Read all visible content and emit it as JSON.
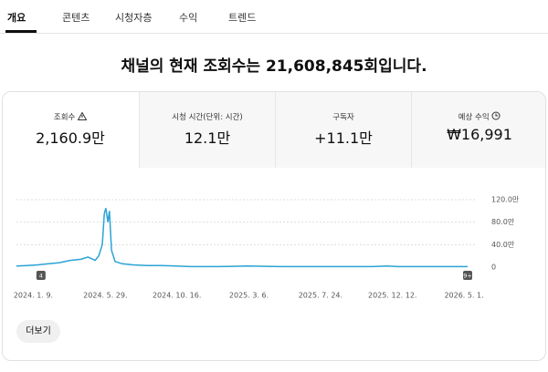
{
  "tabs": [
    "개요",
    "콘텐츠",
    "시청자층",
    "수익",
    "트렌드"
  ],
  "headline": "채널의 현재 조회수는 21,608,845회입니다.",
  "stats": [
    {
      "label": "조회수",
      "value": "2,160.9만"
    },
    {
      "label": "시청 시간(단위: 시간)",
      "value": "12.1만"
    },
    {
      "label": "구독자",
      "value": "+11.1만"
    },
    {
      "label": "예상 수익",
      "value": "₩16,991"
    }
  ],
  "chart_data": {
    "type": "line",
    "x": [
      "2023-12-07",
      "2023-12-28",
      "2024-01-18",
      "2024-02-08",
      "2024-02-29",
      "2024-03-21",
      "2024-04-11",
      "2024-04-25",
      "2024-05-09",
      "2024-05-16",
      "2024-05-23",
      "2024-05-27",
      "2024-05-30",
      "2024-06-03",
      "2024-06-06",
      "2024-06-10",
      "2024-06-17",
      "2024-07-01",
      "2024-07-22",
      "2024-08-19",
      "2024-09-16",
      "2024-10-14",
      "2024-11-11",
      "2025-01-06",
      "2025-03-03",
      "2025-05-05",
      "2025-07-07",
      "2025-09-01",
      "2025-11-03",
      "2025-12-01",
      "2025-12-22",
      "2026-02-02",
      "2026-03-16",
      "2026-05-08"
    ],
    "series": [
      {
        "color": "#2aa3d6",
        "values": [
          2,
          3,
          4,
          6,
          8,
          12,
          14,
          18,
          12,
          20,
          40,
          95,
          105,
          80,
          100,
          30,
          10,
          6,
          4,
          3,
          3,
          2,
          1,
          1,
          2,
          1,
          1,
          1,
          1,
          2,
          1,
          1,
          1,
          1
        ]
      }
    ],
    "xlim": [
      "2023-12-07",
      "2026-05-08"
    ],
    "xticks": [
      {
        "value": "2024-01-09",
        "label": "2024. 1. 9."
      },
      {
        "value": "2024-05-29",
        "label": "2024. 5. 29."
      },
      {
        "value": "2024-10-16",
        "label": "2024. 10. 16."
      },
      {
        "value": "2025-03-06",
        "label": "2025. 3. 6."
      },
      {
        "value": "2025-07-24",
        "label": "2025. 7. 24."
      },
      {
        "value": "2025-12-12",
        "label": "2025. 12. 12."
      },
      {
        "value": "2026-05-01",
        "label": "2026. 5. 1."
      }
    ],
    "ylim": [
      0,
      120
    ],
    "yticks": [
      0,
      {
        "value": 40,
        "label": "40.0만"
      },
      {
        "value": 80,
        "label": "80.0만"
      },
      {
        "value": 120,
        "label": "120.0만"
      }
    ],
    "grid": true,
    "markers": [
      {
        "x": "2024-01-24",
        "label": "4"
      },
      {
        "x": "2026-05-08",
        "label": "9+"
      }
    ]
  },
  "button": "더보기"
}
